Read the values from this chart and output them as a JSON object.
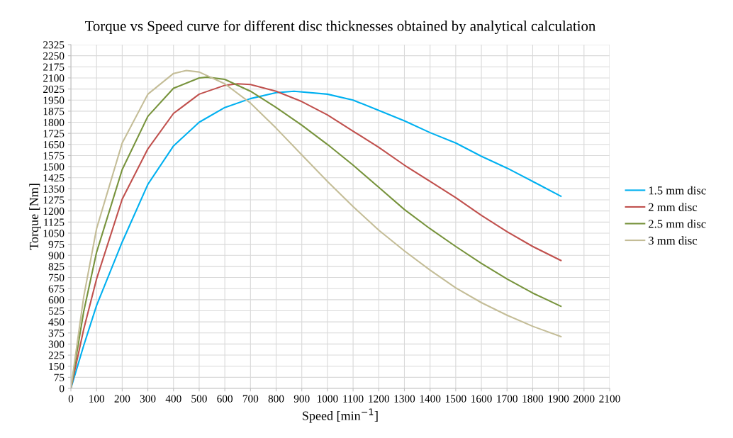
{
  "chart_data": {
    "type": "line",
    "title": "Torque vs Speed curve for different disc thicknesses obtained by analytical calculation",
    "xlabel": "Speed [min$^{−1}$]",
    "ylabel": "Torque [Nm]",
    "xlim": [
      0,
      2100
    ],
    "xticks": [
      0,
      100,
      200,
      300,
      400,
      500,
      600,
      700,
      800,
      900,
      1000,
      1100,
      1200,
      1300,
      1400,
      1500,
      1600,
      1700,
      1800,
      1900,
      2000,
      2100
    ],
    "ylim": [
      0,
      2325
    ],
    "yticks": [
      0,
      75,
      150,
      225,
      300,
      375,
      450,
      525,
      600,
      675,
      750,
      825,
      900,
      975,
      1050,
      1125,
      1200,
      1275,
      1350,
      1425,
      1500,
      1575,
      1650,
      1725,
      1800,
      1875,
      1950,
      2025,
      2100,
      2175,
      2250,
      2325
    ],
    "grid": true,
    "legend": "right",
    "marker": "none",
    "line_style": "solid",
    "series": [
      {
        "name": "1.5 mm disc",
        "color": "#00b0f0",
        "x": [
          0,
          50,
          100,
          200,
          300,
          400,
          500,
          600,
          700,
          800,
          870,
          1000,
          1100,
          1200,
          1300,
          1400,
          1500,
          1600,
          1700,
          1800,
          1910
        ],
        "values": [
          0,
          290,
          560,
          990,
          1380,
          1640,
          1800,
          1900,
          1960,
          2000,
          2010,
          1990,
          1950,
          1880,
          1810,
          1730,
          1660,
          1570,
          1490,
          1400,
          1300
        ]
      },
      {
        "name": "2 mm disc",
        "color": "#c0504d",
        "x": [
          0,
          50,
          100,
          200,
          300,
          400,
          500,
          600,
          650,
          700,
          800,
          900,
          1000,
          1100,
          1200,
          1300,
          1400,
          1500,
          1600,
          1700,
          1800,
          1910
        ],
        "values": [
          0,
          400,
          740,
          1280,
          1620,
          1860,
          1990,
          2050,
          2060,
          2055,
          2010,
          1940,
          1850,
          1740,
          1630,
          1510,
          1400,
          1290,
          1170,
          1060,
          960,
          865
        ]
      },
      {
        "name": "2.5 mm disc",
        "color": "#77933c",
        "x": [
          0,
          50,
          100,
          200,
          300,
          400,
          500,
          530,
          600,
          700,
          800,
          900,
          1000,
          1100,
          1200,
          1300,
          1400,
          1500,
          1600,
          1700,
          1800,
          1910
        ],
        "values": [
          0,
          520,
          920,
          1480,
          1840,
          2030,
          2100,
          2105,
          2090,
          2010,
          1900,
          1780,
          1650,
          1510,
          1360,
          1210,
          1080,
          960,
          845,
          740,
          645,
          555
        ]
      },
      {
        "name": "3 mm disc",
        "color": "#c4bd97",
        "x": [
          0,
          50,
          100,
          200,
          300,
          400,
          450,
          500,
          600,
          700,
          800,
          900,
          1000,
          1100,
          1200,
          1300,
          1400,
          1500,
          1600,
          1700,
          1800,
          1910
        ],
        "values": [
          0,
          620,
          1080,
          1660,
          1990,
          2130,
          2150,
          2140,
          2060,
          1930,
          1760,
          1580,
          1400,
          1230,
          1070,
          930,
          800,
          680,
          580,
          495,
          420,
          350
        ]
      }
    ]
  }
}
